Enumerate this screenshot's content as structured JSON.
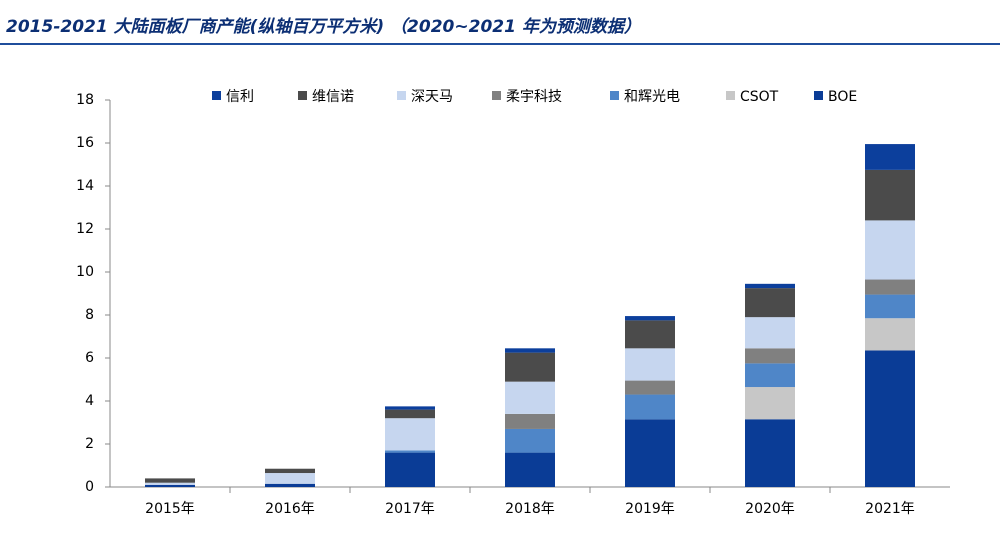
{
  "chart_data": {
    "type": "stacked_bar",
    "title": "2015-2021 大陆面板厂商产能(纵轴百万平方米) （2020~2021 年为预测数据）",
    "categories": [
      "2015年",
      "2016年",
      "2017年",
      "2018年",
      "2019年",
      "2020年",
      "2021年"
    ],
    "series": [
      {
        "name": "BOE",
        "color": "#0a3c96",
        "values": [
          0.1,
          0.15,
          1.6,
          1.6,
          3.15,
          3.15,
          6.35
        ]
      },
      {
        "name": "CSOT",
        "color": "#c7c7c7",
        "values": [
          0,
          0,
          0,
          0,
          0,
          1.5,
          1.5
        ]
      },
      {
        "name": "和辉光电",
        "color": "#4f86c8",
        "values": [
          0,
          0,
          0.1,
          1.1,
          1.15,
          1.1,
          1.1
        ]
      },
      {
        "name": "柔宇科技",
        "color": "#808080",
        "values": [
          0,
          0,
          0,
          0.7,
          0.65,
          0.7,
          0.7
        ]
      },
      {
        "name": "深天马",
        "color": "#c6d6ef",
        "values": [
          0.1,
          0.5,
          1.5,
          1.5,
          1.5,
          1.45,
          2.75
        ]
      },
      {
        "name": "维信诺",
        "color": "#4b4b4b",
        "values": [
          0.2,
          0.2,
          0.4,
          1.35,
          1.3,
          1.35,
          2.35
        ]
      },
      {
        "name": "信利",
        "color": "#0c3f9c",
        "values": [
          0,
          0,
          0.15,
          0.2,
          0.2,
          0.2,
          1.2
        ]
      }
    ],
    "ylim": [
      0,
      18
    ],
    "yticks": [
      0,
      2,
      4,
      6,
      8,
      10,
      12,
      14,
      16,
      18
    ]
  }
}
